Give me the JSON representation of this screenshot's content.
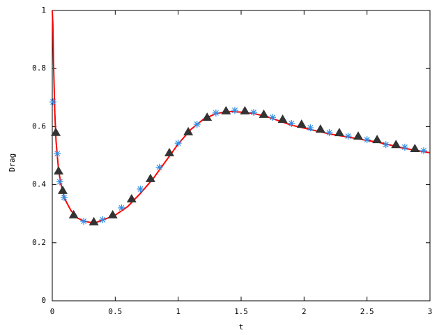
{
  "chart_data": {
    "type": "line",
    "xlabel": "t",
    "ylabel": "Drag",
    "xlim": [
      0,
      3
    ],
    "ylim": [
      0,
      1
    ],
    "xticks": [
      0,
      0.5,
      1,
      1.5,
      2,
      2.5,
      3
    ],
    "yticks": [
      0,
      0.2,
      0.4,
      0.6,
      0.8,
      1
    ],
    "series": [
      {
        "color": "#ff0000",
        "marker": "none",
        "x": [
          0,
          0.005,
          0.01,
          0.02,
          0.03,
          0.05,
          0.07,
          0.1,
          0.15,
          0.2,
          0.25,
          0.3,
          0.35,
          0.4,
          0.5,
          0.6,
          0.7,
          0.8,
          0.9,
          1.0,
          1.1,
          1.2,
          1.3,
          1.4,
          1.5,
          1.6,
          1.7,
          1.8,
          1.9,
          2.0,
          2.2,
          2.4,
          2.6,
          2.8,
          3.0
        ],
        "values": [
          1.0,
          0.95,
          0.82,
          0.65,
          0.55,
          0.45,
          0.4,
          0.35,
          0.31,
          0.285,
          0.275,
          0.27,
          0.27,
          0.278,
          0.295,
          0.325,
          0.37,
          0.42,
          0.48,
          0.54,
          0.59,
          0.625,
          0.645,
          0.652,
          0.65,
          0.645,
          0.635,
          0.62,
          0.605,
          0.595,
          0.575,
          0.56,
          0.545,
          0.525,
          0.51
        ]
      },
      {
        "color": "#2f8ee6",
        "marker": "asterisk",
        "x": [
          0.006,
          0.04,
          0.06,
          0.094,
          0.25,
          0.4,
          0.55,
          0.7,
          0.85,
          1.0,
          1.15,
          1.3,
          1.45,
          1.6,
          1.75,
          1.9,
          2.05,
          2.2,
          2.35,
          2.5,
          2.65,
          2.8,
          2.95
        ],
        "values": [
          0.685,
          0.507,
          0.41,
          0.356,
          0.274,
          0.279,
          0.32,
          0.385,
          0.46,
          0.543,
          0.608,
          0.647,
          0.656,
          0.649,
          0.632,
          0.611,
          0.596,
          0.579,
          0.567,
          0.555,
          0.538,
          0.529,
          0.517
        ]
      },
      {
        "color": "#333333",
        "marker": "triangle",
        "x": [
          0.028,
          0.05,
          0.083,
          0.17,
          0.33,
          0.48,
          0.63,
          0.78,
          0.93,
          1.08,
          1.23,
          1.38,
          1.53,
          1.68,
          1.83,
          1.98,
          2.13,
          2.28,
          2.43,
          2.58,
          2.73,
          2.88
        ],
        "values": [
          0.58,
          0.447,
          0.38,
          0.296,
          0.272,
          0.296,
          0.351,
          0.421,
          0.51,
          0.582,
          0.632,
          0.654,
          0.654,
          0.642,
          0.625,
          0.608,
          0.591,
          0.579,
          0.567,
          0.555,
          0.538,
          0.524
        ]
      }
    ]
  }
}
